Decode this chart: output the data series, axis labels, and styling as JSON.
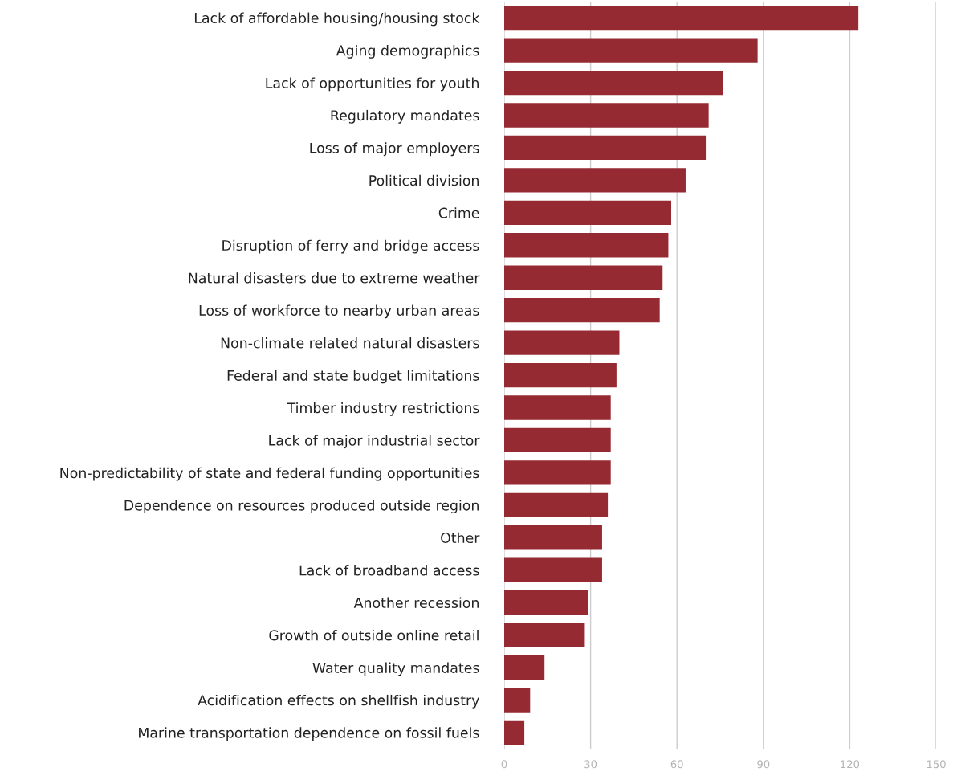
{
  "chart_data": {
    "type": "bar",
    "orientation": "horizontal",
    "categories": [
      "Lack of affordable housing/housing stock",
      "Aging demographics",
      "Lack of opportunities for youth",
      "Regulatory mandates",
      "Loss of major employers",
      "Political division",
      "Crime",
      "Disruption of ferry and bridge access",
      "Natural disasters due to extreme weather",
      "Loss of workforce to nearby urban areas",
      "Non-climate related natural disasters",
      "Federal and state budget limitations",
      "Timber industry restrictions",
      "Lack of major industrial sector",
      "Non-predictability of state and federal funding opportunities",
      "Dependence on resources produced outside region",
      "Other",
      "Lack of broadband access",
      "Another recession",
      "Growth of outside online retail",
      "Water quality mandates",
      "Acidification effects on shellfish industry",
      "Marine transportation dependence on fossil fuels"
    ],
    "values": [
      123,
      88,
      76,
      71,
      70,
      63,
      58,
      57,
      55,
      54,
      40,
      39,
      37,
      37,
      37,
      36,
      34,
      34,
      29,
      28,
      14,
      9,
      7
    ],
    "color": "#962a32",
    "xlim": [
      0,
      150
    ],
    "xticks": [
      0,
      30,
      60,
      90,
      120,
      150
    ],
    "grid": "x",
    "legend": false
  }
}
